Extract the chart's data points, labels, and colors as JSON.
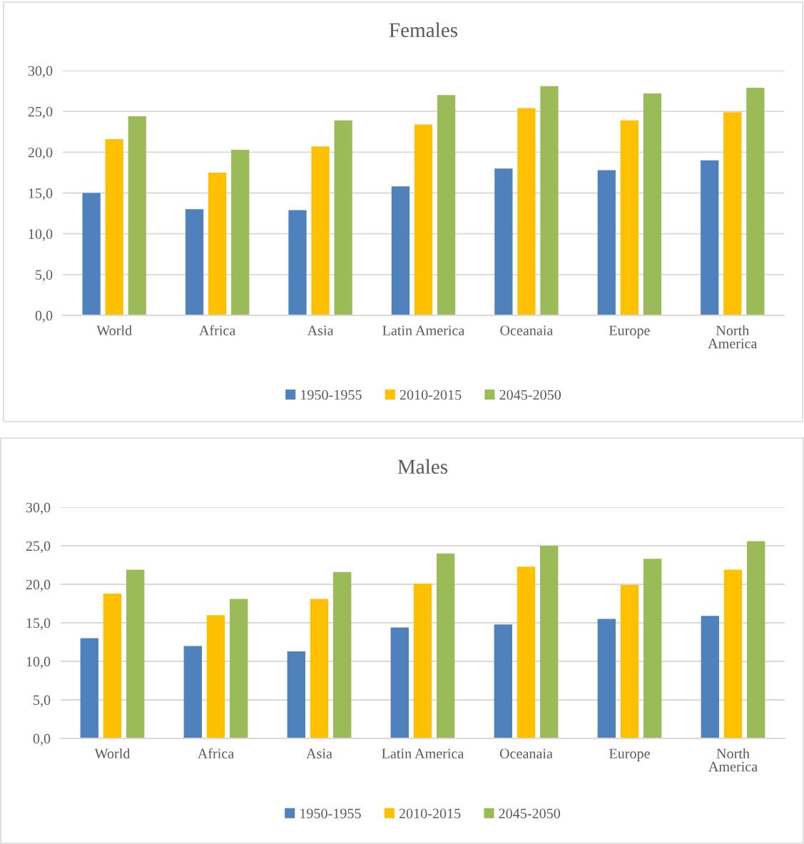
{
  "chart_data": [
    {
      "type": "bar",
      "title": "Females",
      "categories": [
        "World",
        "Africa",
        "Asia",
        "Latin America",
        "Oceanaia",
        "Europe",
        "North\nAmerica"
      ],
      "series": [
        {
          "name": "1950-1955",
          "color": "#4f81bd",
          "values": [
            15.0,
            13.0,
            12.9,
            15.8,
            18.0,
            17.8,
            19.0
          ]
        },
        {
          "name": "2010-2015",
          "color": "#ffc000",
          "values": [
            21.6,
            17.5,
            20.7,
            23.4,
            25.4,
            23.9,
            24.9
          ]
        },
        {
          "name": "2045-2050",
          "color": "#9bbb59",
          "values": [
            24.4,
            20.3,
            23.9,
            27.0,
            28.1,
            27.2,
            27.9
          ]
        }
      ],
      "ylim": [
        0,
        30
      ],
      "yticks": [
        {
          "value": 0,
          "label": "0,0"
        },
        {
          "value": 5,
          "label": "5,0"
        },
        {
          "value": 10,
          "label": "10,0"
        },
        {
          "value": 15,
          "label": "15,0"
        },
        {
          "value": 20,
          "label": "20,0"
        },
        {
          "value": 25,
          "label": "25,0"
        },
        {
          "value": 30,
          "label": "30,0"
        }
      ],
      "grid": "y",
      "legend": "bottom"
    },
    {
      "type": "bar",
      "title": "Males",
      "categories": [
        "World",
        "Africa",
        "Asia",
        "Latin America",
        "Oceanaia",
        "Europe",
        "North\nAmerica"
      ],
      "series": [
        {
          "name": "1950-1955",
          "color": "#4f81bd",
          "values": [
            13.0,
            12.0,
            11.3,
            14.4,
            14.8,
            15.5,
            15.9
          ]
        },
        {
          "name": "2010-2015",
          "color": "#ffc000",
          "values": [
            18.8,
            16.0,
            18.1,
            20.1,
            22.3,
            19.9,
            21.9
          ]
        },
        {
          "name": "2045-2050",
          "color": "#9bbb59",
          "values": [
            21.9,
            18.1,
            21.6,
            24.0,
            25.0,
            23.3,
            25.6
          ]
        }
      ],
      "ylim": [
        0,
        30
      ],
      "yticks": [
        {
          "value": 0,
          "label": "0,0"
        },
        {
          "value": 5,
          "label": "5,0"
        },
        {
          "value": 10,
          "label": "10,0"
        },
        {
          "value": 15,
          "label": "15,0"
        },
        {
          "value": 20,
          "label": "20,0"
        },
        {
          "value": 25,
          "label": "25,0"
        },
        {
          "value": 30,
          "label": "30,0"
        }
      ],
      "grid": "y",
      "legend": "bottom"
    }
  ]
}
